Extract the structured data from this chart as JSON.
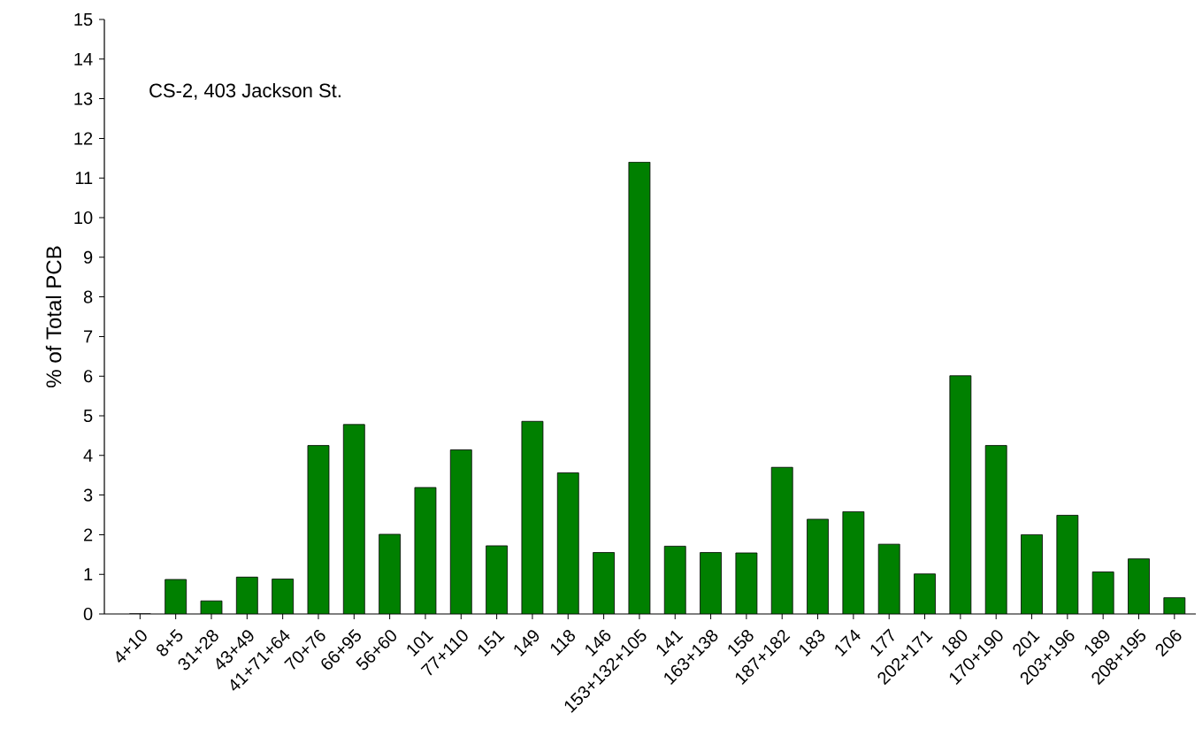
{
  "chart_data": {
    "type": "bar",
    "title": "CS-2, 403 Jackson St.",
    "ylabel": "% of Total PCB",
    "categories": [
      "4+10",
      "8+5",
      "31+28",
      "43+49",
      "41+71+64",
      "70+76",
      "66+95",
      "56+60",
      "101",
      "77+110",
      "151",
      "149",
      "118",
      "146",
      "153+132+105",
      "141",
      "163+138",
      "158",
      "187+182",
      "183",
      "174",
      "177",
      "202+171",
      "180",
      "170+190",
      "201",
      "203+196",
      "189",
      "208+195",
      "206"
    ],
    "values": [
      0,
      0.87,
      0.33,
      0.93,
      0.88,
      4.25,
      4.78,
      2.01,
      3.19,
      4.14,
      1.72,
      4.86,
      3.56,
      1.55,
      11.4,
      1.71,
      1.55,
      1.54,
      3.7,
      2.39,
      2.58,
      1.76,
      1.01,
      6.01,
      4.25,
      2.0,
      2.49,
      1.06,
      1.39,
      0.41
    ],
    "color": "#008000",
    "ylim": [
      0,
      15
    ],
    "yticks": [
      0,
      1,
      2,
      3,
      4,
      5,
      6,
      7,
      8,
      9,
      10,
      11,
      12,
      13,
      14,
      15
    ],
    "grid": false
  }
}
